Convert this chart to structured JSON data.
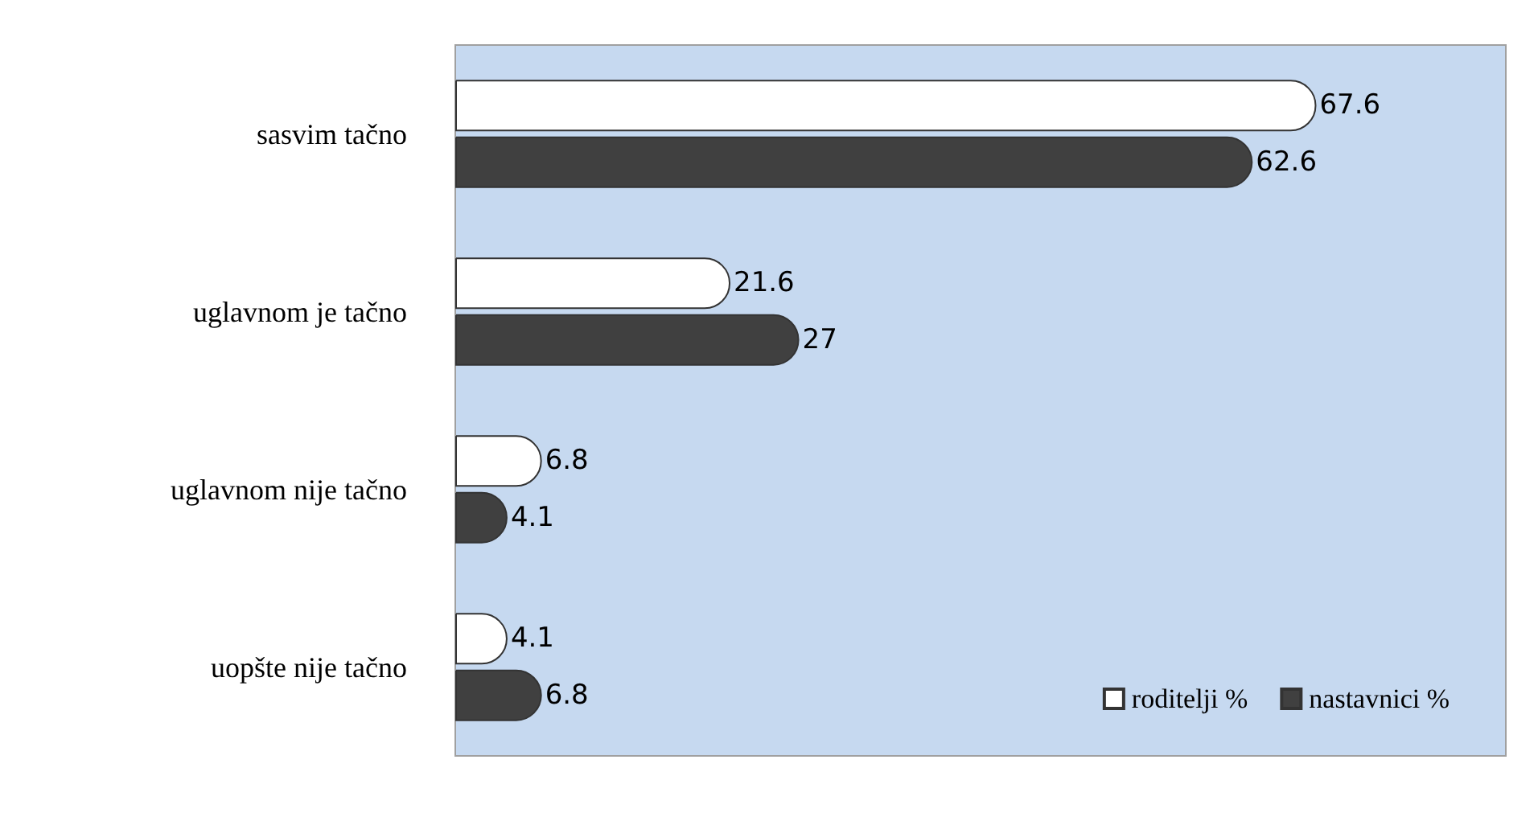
{
  "chart_data": {
    "type": "bar",
    "orientation": "horizontal",
    "categories": [
      "sasvim tačno",
      "uglavnom je tačno",
      "uglavnom nije tačno",
      "uopšte nije tačno"
    ],
    "series": [
      {
        "name": "roditelji %",
        "color": "#ffffff",
        "values": [
          67.6,
          21.6,
          6.8,
          4.1
        ]
      },
      {
        "name": "nastavnici %",
        "color": "#404040",
        "values": [
          62.6,
          27,
          4.1,
          6.8
        ]
      }
    ],
    "data_labels": true,
    "legend": "bottom right",
    "tick_labels": "y",
    "grid": false
  }
}
